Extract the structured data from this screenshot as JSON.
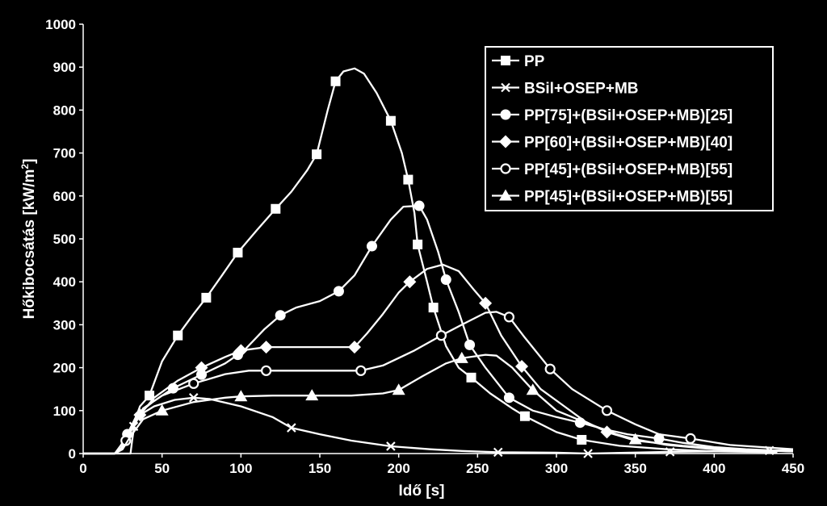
{
  "chart_data": {
    "type": "line",
    "title": "",
    "xlabel": "Idő [s]",
    "ylabel_main": "Hőkibocsátás [kW/m",
    "ylabel_sup": "2",
    "ylabel_end": "]",
    "xlim": [
      0,
      450
    ],
    "ylim": [
      0,
      1000
    ],
    "x_ticks": [
      0,
      50,
      100,
      150,
      200,
      250,
      300,
      350,
      400,
      450
    ],
    "y_ticks": [
      0,
      100,
      200,
      300,
      400,
      500,
      600,
      700,
      800,
      900,
      1000
    ],
    "grid": false,
    "legend_position": "top-right",
    "colors": {
      "background": "#000000",
      "plot_area": "#000000",
      "lines": "#ffffff",
      "axes": "#ffffff"
    },
    "series": [
      {
        "name": "PP",
        "marker": "square",
        "points": [
          [
            0,
            0
          ],
          [
            30,
            0
          ],
          [
            31,
            30
          ],
          [
            33,
            80
          ],
          [
            36,
            110
          ],
          [
            42,
            135
          ],
          [
            50,
            215
          ],
          [
            60,
            275
          ],
          [
            70,
            325
          ],
          [
            78,
            363
          ],
          [
            88,
            415
          ],
          [
            98,
            468
          ],
          [
            110,
            520
          ],
          [
            122,
            570
          ],
          [
            132,
            610
          ],
          [
            142,
            660
          ],
          [
            148,
            697
          ],
          [
            155,
            800
          ],
          [
            160,
            867
          ],
          [
            165,
            890
          ],
          [
            172,
            897
          ],
          [
            178,
            885
          ],
          [
            186,
            840
          ],
          [
            195,
            775
          ],
          [
            202,
            700
          ],
          [
            206,
            638
          ],
          [
            210,
            560
          ],
          [
            212,
            487
          ],
          [
            218,
            400
          ],
          [
            222,
            340
          ],
          [
            230,
            250
          ],
          [
            238,
            200
          ],
          [
            246,
            177
          ],
          [
            258,
            140
          ],
          [
            272,
            105
          ],
          [
            280,
            87
          ],
          [
            300,
            50
          ],
          [
            316,
            32
          ],
          [
            340,
            18
          ],
          [
            370,
            10
          ],
          [
            400,
            5
          ],
          [
            440,
            3
          ]
        ],
        "marker_x": [
          42,
          60,
          78,
          98,
          122,
          148,
          160,
          195,
          206,
          212,
          222,
          246,
          280,
          316
        ]
      },
      {
        "name": "BSil+OSEP+MB",
        "marker": "x",
        "points": [
          [
            0,
            0
          ],
          [
            20,
            0
          ],
          [
            25,
            15
          ],
          [
            30,
            50
          ],
          [
            36,
            90
          ],
          [
            45,
            110
          ],
          [
            58,
            125
          ],
          [
            70,
            130
          ],
          [
            80,
            127
          ],
          [
            100,
            110
          ],
          [
            120,
            85
          ],
          [
            132,
            60
          ],
          [
            150,
            45
          ],
          [
            170,
            30
          ],
          [
            195,
            17
          ],
          [
            220,
            10
          ],
          [
            240,
            6
          ],
          [
            263,
            3
          ],
          [
            300,
            2
          ],
          [
            320,
            0
          ],
          [
            372,
            4
          ],
          [
            400,
            5
          ],
          [
            435,
            7
          ],
          [
            450,
            8
          ]
        ],
        "marker_x": [
          32,
          70,
          132,
          195,
          263,
          320,
          372,
          435
        ]
      },
      {
        "name": "PP[75]+(BSil+OSEP+MB)[25]",
        "marker": "circle",
        "points": [
          [
            0,
            0
          ],
          [
            20,
            0
          ],
          [
            24,
            20
          ],
          [
            28,
            45
          ],
          [
            34,
            90
          ],
          [
            44,
            120
          ],
          [
            57,
            152
          ],
          [
            70,
            175
          ],
          [
            90,
            210
          ],
          [
            102,
            240
          ],
          [
            115,
            290
          ],
          [
            125,
            322
          ],
          [
            135,
            340
          ],
          [
            150,
            355
          ],
          [
            162,
            378
          ],
          [
            172,
            415
          ],
          [
            183,
            483
          ],
          [
            195,
            545
          ],
          [
            203,
            575
          ],
          [
            213,
            577
          ],
          [
            218,
            545
          ],
          [
            225,
            470
          ],
          [
            230,
            405
          ],
          [
            238,
            330
          ],
          [
            245,
            253
          ],
          [
            255,
            200
          ],
          [
            270,
            130
          ],
          [
            285,
            100
          ],
          [
            300,
            85
          ],
          [
            315,
            72
          ],
          [
            330,
            57
          ],
          [
            345,
            45
          ],
          [
            365,
            35
          ],
          [
            380,
            25
          ],
          [
            400,
            15
          ],
          [
            420,
            10
          ],
          [
            450,
            5
          ]
        ],
        "marker_x": [
          28,
          57,
          75,
          98,
          125,
          162,
          183,
          213,
          230,
          245,
          270,
          315,
          365
        ]
      },
      {
        "name": "PP[60]+(BSil+OSEP+MB)[40]",
        "marker": "diamond",
        "points": [
          [
            0,
            0
          ],
          [
            20,
            0
          ],
          [
            24,
            10
          ],
          [
            28,
            40
          ],
          [
            36,
            90
          ],
          [
            45,
            130
          ],
          [
            60,
            170
          ],
          [
            75,
            200
          ],
          [
            90,
            225
          ],
          [
            100,
            240
          ],
          [
            116,
            248
          ],
          [
            140,
            248
          ],
          [
            172,
            248
          ],
          [
            180,
            280
          ],
          [
            190,
            325
          ],
          [
            200,
            375
          ],
          [
            207,
            400
          ],
          [
            218,
            430
          ],
          [
            228,
            440
          ],
          [
            238,
            425
          ],
          [
            248,
            380
          ],
          [
            255,
            350
          ],
          [
            265,
            275
          ],
          [
            278,
            203
          ],
          [
            290,
            150
          ],
          [
            305,
            110
          ],
          [
            318,
            75
          ],
          [
            332,
            50
          ],
          [
            350,
            30
          ],
          [
            380,
            18
          ],
          [
            410,
            10
          ],
          [
            450,
            5
          ]
        ],
        "marker_x": [
          36,
          75,
          100,
          116,
          172,
          207,
          255,
          278,
          332
        ]
      },
      {
        "name": "PP[45]+(BSil+OSEP+MB)[55]",
        "marker": "circle-open",
        "points": [
          [
            0,
            0
          ],
          [
            20,
            0
          ],
          [
            24,
            12
          ],
          [
            27,
            30
          ],
          [
            32,
            70
          ],
          [
            38,
            105
          ],
          [
            50,
            135
          ],
          [
            70,
            163
          ],
          [
            90,
            185
          ],
          [
            105,
            193
          ],
          [
            116,
            193
          ],
          [
            140,
            193
          ],
          [
            176,
            193
          ],
          [
            190,
            205
          ],
          [
            210,
            240
          ],
          [
            227,
            275
          ],
          [
            240,
            300
          ],
          [
            255,
            328
          ],
          [
            262,
            330
          ],
          [
            270,
            318
          ],
          [
            280,
            270
          ],
          [
            296,
            197
          ],
          [
            310,
            150
          ],
          [
            332,
            100
          ],
          [
            350,
            68
          ],
          [
            365,
            45
          ],
          [
            385,
            35
          ],
          [
            410,
            20
          ],
          [
            450,
            10
          ]
        ],
        "marker_x": [
          27,
          70,
          116,
          176,
          227,
          270,
          296,
          332,
          385
        ]
      },
      {
        "name": "PP[45]+(BSil+OSEP+MB)[55]",
        "marker": "triangle",
        "points": [
          [
            0,
            0
          ],
          [
            20,
            0
          ],
          [
            25,
            10
          ],
          [
            30,
            40
          ],
          [
            38,
            80
          ],
          [
            50,
            100
          ],
          [
            70,
            120
          ],
          [
            90,
            130
          ],
          [
            100,
            133
          ],
          [
            120,
            135
          ],
          [
            145,
            135
          ],
          [
            170,
            135
          ],
          [
            190,
            140
          ],
          [
            200,
            148
          ],
          [
            215,
            180
          ],
          [
            230,
            210
          ],
          [
            240,
            222
          ],
          [
            255,
            230
          ],
          [
            262,
            228
          ],
          [
            272,
            200
          ],
          [
            285,
            148
          ],
          [
            300,
            100
          ],
          [
            320,
            70
          ],
          [
            338,
            45
          ],
          [
            350,
            33
          ],
          [
            370,
            20
          ],
          [
            400,
            10
          ],
          [
            450,
            5
          ]
        ],
        "marker_x": [
          50,
          100,
          145,
          200,
          240,
          285,
          350
        ]
      }
    ]
  }
}
